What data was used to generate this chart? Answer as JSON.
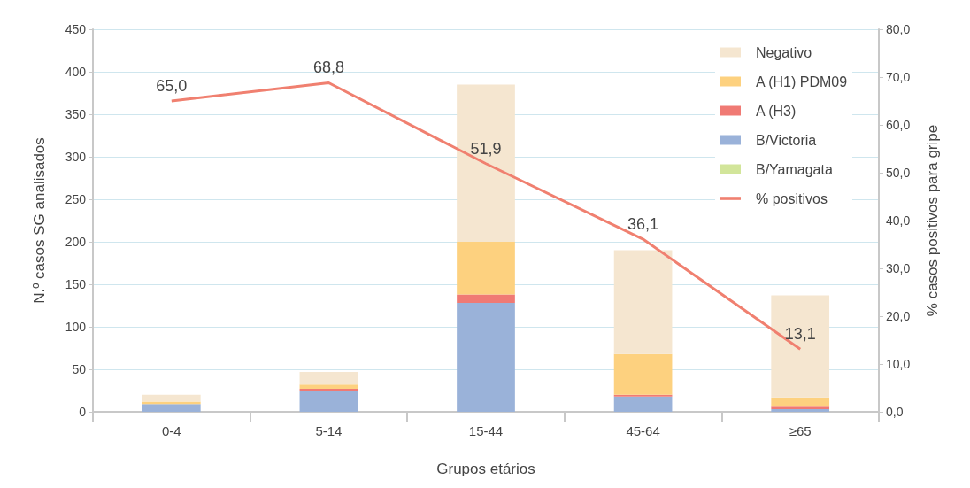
{
  "chart_data": {
    "type": "bar",
    "stacked": true,
    "xlabel": "Grupos etários",
    "ylabel": "N.º casos SG analisados",
    "y2label": "% casos positivos para gripe",
    "categories": [
      "0-4",
      "5-14",
      "15-44",
      "45-64",
      "≥65"
    ],
    "series": [
      {
        "name": "B/Yamagata",
        "color": "#d2e59a",
        "values": [
          0,
          0,
          0,
          0,
          0
        ]
      },
      {
        "name": "B/Victoria",
        "color": "#9ab2d9",
        "values": [
          9,
          25,
          128,
          18,
          3
        ]
      },
      {
        "name": "A (H3)",
        "color": "#f07a74",
        "values": [
          0,
          2,
          10,
          2,
          4
        ]
      },
      {
        "name": "A (H1) PDM09",
        "color": "#fdd17f",
        "values": [
          3,
          5,
          62,
          48,
          10
        ]
      },
      {
        "name": "Negativo",
        "color": "#f5e6d0",
        "values": [
          8,
          15,
          185,
          122,
          120
        ]
      },
      {
        "name": "% positivos",
        "type": "line",
        "axis": "y2",
        "color": "#f08070",
        "marker": "none",
        "values": [
          65.0,
          68.8,
          51.9,
          36.1,
          13.1
        ],
        "value_labels": [
          "65,0",
          "68,8",
          "51,9",
          "36,1",
          "13,1"
        ]
      }
    ],
    "ylim": [
      0,
      450
    ],
    "yticks": [
      0,
      50,
      100,
      150,
      200,
      250,
      300,
      350,
      400,
      450
    ],
    "y2lim": [
      0,
      80
    ],
    "y2ticks": [
      {
        "value": 0,
        "label": "0,0"
      },
      {
        "value": 10,
        "label": "10,0"
      },
      {
        "value": 20,
        "label": "20,0"
      },
      {
        "value": 30,
        "label": "30,0"
      },
      {
        "value": 40,
        "label": "40,0"
      },
      {
        "value": 50,
        "label": "50,0"
      },
      {
        "value": 60,
        "label": "60,0"
      },
      {
        "value": 70,
        "label": "70,0"
      },
      {
        "value": 80,
        "label": "80,0"
      }
    ],
    "grid": "y",
    "legend": "top right"
  }
}
